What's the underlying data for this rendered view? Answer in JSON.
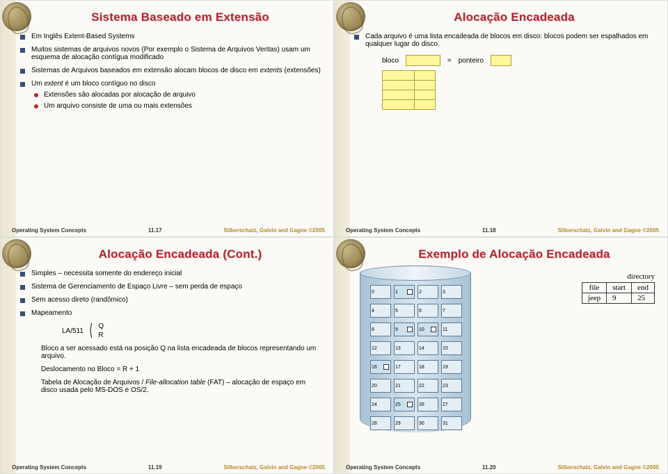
{
  "footer": {
    "left": "Operating System Concepts",
    "right": "Silberschatz, Galvin and Gagne ©2005"
  },
  "slides": {
    "s17": {
      "title": "Sistema Baseado em Extensão",
      "b1": "Em Inglês Extent-Based Systems",
      "b2": "Muitos sistemas de arquivos novos (Por exemplo o Sistema de Arquivos Veritas) usam um esquema de alocação contígua modificado",
      "b3": "Sistemas de Arquivos baseados em extensão alocam blocos de disco em extents (extensões)",
      "b4": "Um extent é um bloco contíguo no disco",
      "b4a": "Extensões são alocadas por alocação de arquivo",
      "b4b": "Um arquivo consiste de uma ou mais extensões",
      "page": "11.17"
    },
    "s18": {
      "title": "Alocação Encadeada",
      "b1": "Cada arquivo é uma lista encadeada de blocos em disco: blocos podem ser espalhados em qualquer lugar do disco.",
      "eq_left": "bloco",
      "eq_mid": "=",
      "eq_right": "ponteiro",
      "page": "11.18"
    },
    "s19": {
      "title": "Alocação Encadeada (Cont.)",
      "b1": "Simples – necessita somente do endereço inicial",
      "b2": "Sistema de Gerenciamento de Espaço Livre  – sem perda de espaço",
      "b3": "Sem acesso direto (randômico)",
      "b4": "Mapeamento",
      "map_la": "LA/511",
      "map_q": "Q",
      "map_r": "R",
      "p1": "Bloco a ser acessado está na posição Q na lista encadeada de blocos representando um arquivo.",
      "p2": "Deslocamento no Bloco  = R + 1",
      "p3": "Tabela de Alocação de Arquivos / File-allocation table (FAT) – alocação de espaço em disco usada pelo MS-DOS e OS/2.",
      "page": "11.19"
    },
    "s20": {
      "title": "Exemplo de Alocação Encadeada",
      "dir_label": "directory",
      "dir_cols": [
        "file",
        "start",
        "end"
      ],
      "dir_row": [
        "jeep",
        "9",
        "25"
      ],
      "linked_blocks": [
        9,
        16,
        1,
        10,
        25
      ],
      "page": "11.20"
    }
  },
  "colors": {
    "title": "#b3282f",
    "square_bullet": "#3a4d7a",
    "round_bullet": "#b3282f",
    "yellow_cell": "#fff79a",
    "cyl_fill": "#cde0ee"
  }
}
